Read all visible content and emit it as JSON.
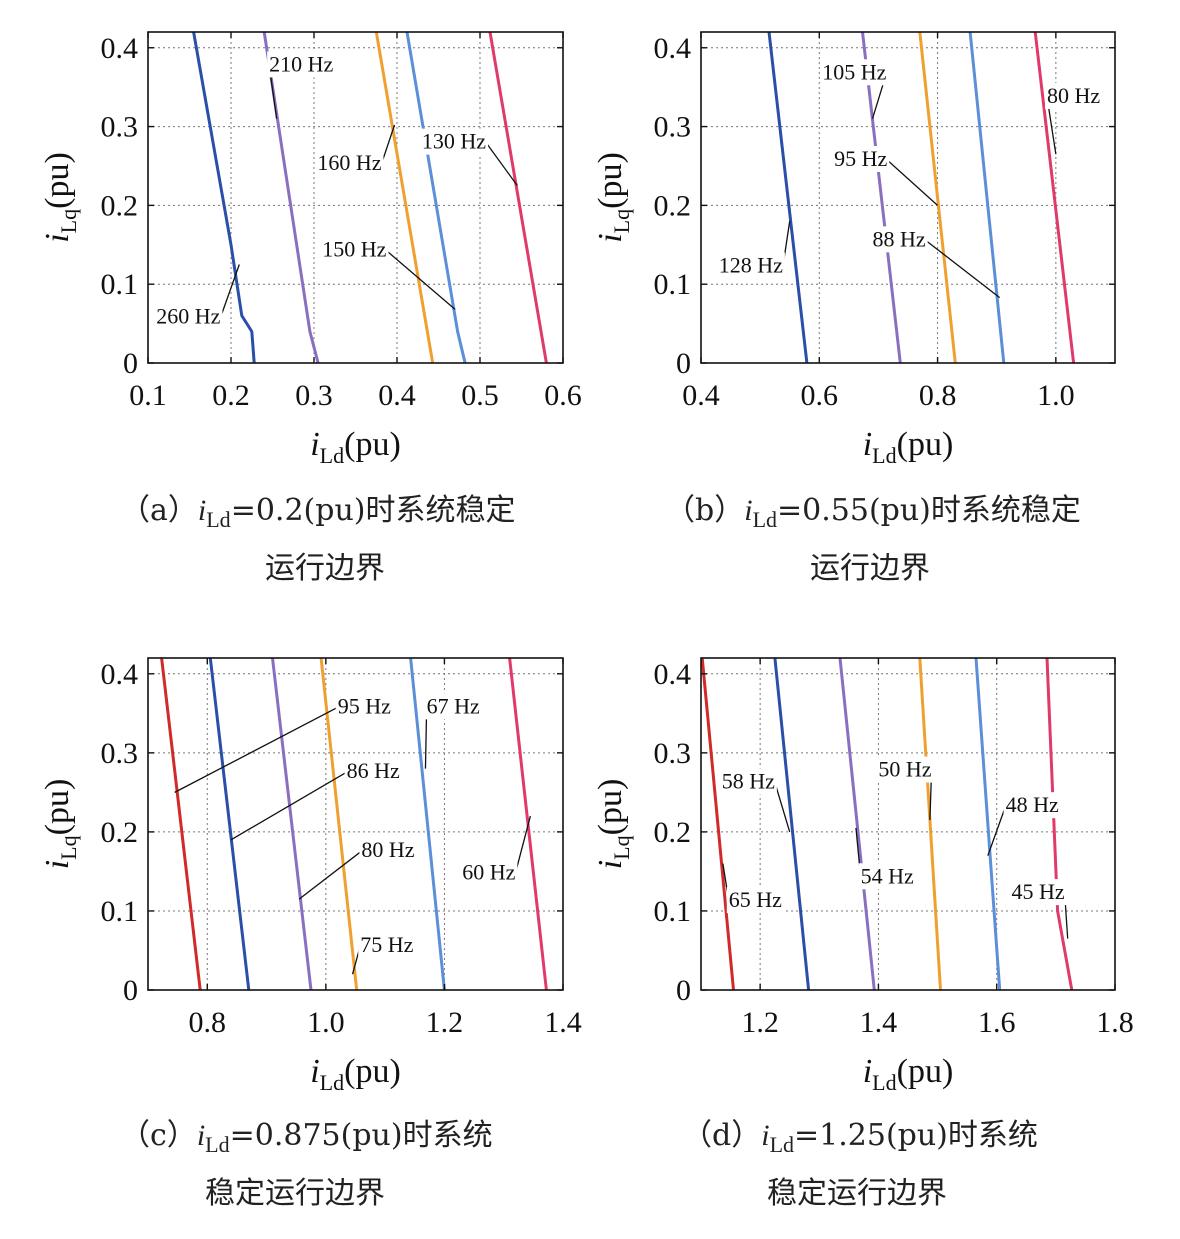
{
  "chart_data": [
    {
      "type": "line",
      "id": "a",
      "xlabel": {
        "var": "i",
        "sub": "Ld",
        "unit": "(pu)"
      },
      "ylabel": {
        "var": "i",
        "sub": "Lq",
        "unit": "(pu)"
      },
      "xlim": [
        0.1,
        0.6
      ],
      "ylim": [
        0,
        0.42
      ],
      "xticks": [
        0.1,
        0.2,
        0.3,
        0.4,
        0.5,
        0.6
      ],
      "xtick_labels": [
        "0.1",
        "0.2",
        "0.3",
        "0.4",
        "0.5",
        "0.6"
      ],
      "yticks": [
        0,
        0.1,
        0.2,
        0.3,
        0.4
      ],
      "ytick_labels": [
        "0",
        "0.1",
        "0.2",
        "0.3",
        "0.4"
      ],
      "caption": {
        "prefix": "（a）",
        "var": "i",
        "sub": "Ld",
        "text1": "=0.2(pu)时系统稳定",
        "line2": "运行边界"
      },
      "series": [
        {
          "name": "260 Hz",
          "color": "#2a4fa8",
          "x": [
            0.155,
            0.2,
            0.213,
            0.225,
            0.228
          ],
          "y": [
            0.42,
            0.15,
            0.06,
            0.04,
            0
          ]
        },
        {
          "name": "210 Hz",
          "color": "#8a6fc0",
          "x": [
            0.24,
            0.295,
            0.305
          ],
          "y": [
            0.42,
            0.04,
            0
          ]
        },
        {
          "name": "160 Hz",
          "color": "#f0a030",
          "x": [
            0.375,
            0.443
          ],
          "y": [
            0.42,
            0
          ]
        },
        {
          "name": "150 Hz",
          "color": "#5b8fd8",
          "x": [
            0.412,
            0.473,
            0.482
          ],
          "y": [
            0.42,
            0.04,
            0
          ]
        },
        {
          "name": "130 Hz",
          "color": "#e03a6a",
          "x": [
            0.512,
            0.58
          ],
          "y": [
            0.42,
            0
          ]
        }
      ],
      "labels": [
        {
          "text": "210 Hz",
          "tx": 0.246,
          "ty": 0.37,
          "ax": 0.255,
          "ay": 0.31
        },
        {
          "text": "160 Hz",
          "tx": 0.304,
          "ty": 0.245,
          "ax": 0.397,
          "ay": 0.302
        },
        {
          "text": "130 Hz",
          "tx": 0.43,
          "ty": 0.272,
          "ax": 0.545,
          "ay": 0.225
        },
        {
          "text": "150 Hz",
          "tx": 0.31,
          "ty": 0.135,
          "ax": 0.47,
          "ay": 0.068
        },
        {
          "text": "260 Hz",
          "tx": 0.11,
          "ty": 0.05,
          "ax": 0.21,
          "ay": 0.125
        }
      ]
    },
    {
      "type": "line",
      "id": "b",
      "xlabel": {
        "var": "i",
        "sub": "Ld",
        "unit": "(pu)"
      },
      "ylabel": {
        "var": "i",
        "sub": "Lq",
        "unit": "(pu)"
      },
      "xlim": [
        0.4,
        1.1
      ],
      "ylim": [
        0,
        0.42
      ],
      "xticks": [
        0.4,
        0.6,
        0.8,
        1.0
      ],
      "xtick_labels": [
        "0.4",
        "0.6",
        "0.8",
        "1.0"
      ],
      "yticks": [
        0,
        0.1,
        0.2,
        0.3,
        0.4
      ],
      "ytick_labels": [
        "0",
        "0.1",
        "0.2",
        "0.3",
        "0.4"
      ],
      "caption": {
        "prefix": "（b）",
        "var": "i",
        "sub": "Ld",
        "text1": "=0.55(pu)时系统稳定",
        "line2": "运行边界"
      },
      "series": [
        {
          "name": "128 Hz",
          "color": "#2a4fa8",
          "x": [
            0.515,
            0.579
          ],
          "y": [
            0.42,
            0
          ]
        },
        {
          "name": "105 Hz",
          "color": "#8a6fc0",
          "x": [
            0.673,
            0.737
          ],
          "y": [
            0.42,
            0
          ]
        },
        {
          "name": "95 Hz",
          "color": "#f0a030",
          "x": [
            0.77,
            0.83
          ],
          "y": [
            0.42,
            0
          ]
        },
        {
          "name": "88 Hz",
          "color": "#5b8fd8",
          "x": [
            0.855,
            0.912
          ],
          "y": [
            0.42,
            0
          ]
        },
        {
          "name": "80 Hz",
          "color": "#e03a6a",
          "x": [
            0.965,
            1.03
          ],
          "y": [
            0.42,
            0
          ]
        }
      ],
      "labels": [
        {
          "text": "105 Hz",
          "tx": 0.605,
          "ty": 0.36,
          "ax": 0.69,
          "ay": 0.31
        },
        {
          "text": "95 Hz",
          "tx": 0.625,
          "ty": 0.25,
          "ax": 0.8,
          "ay": 0.2
        },
        {
          "text": "88 Hz",
          "tx": 0.69,
          "ty": 0.148,
          "ax": 0.905,
          "ay": 0.083
        },
        {
          "text": "128 Hz",
          "tx": 0.43,
          "ty": 0.115,
          "ax": 0.55,
          "ay": 0.18
        },
        {
          "text": "80 Hz",
          "tx": 0.985,
          "ty": 0.33,
          "ax": 1.0,
          "ay": 0.265
        }
      ]
    },
    {
      "type": "line",
      "id": "c",
      "xlabel": {
        "var": "i",
        "sub": "Ld",
        "unit": "(pu)"
      },
      "ylabel": {
        "var": "i",
        "sub": "Lq",
        "unit": "(pu)"
      },
      "xlim": [
        0.7,
        1.4
      ],
      "ylim": [
        0,
        0.42
      ],
      "xticks": [
        0.8,
        1.0,
        1.2,
        1.4
      ],
      "xtick_labels": [
        "0.8",
        "1.0",
        "1.2",
        "1.4"
      ],
      "yticks": [
        0,
        0.1,
        0.2,
        0.3,
        0.4
      ],
      "ytick_labels": [
        "0",
        "0.1",
        "0.2",
        "0.3",
        "0.4"
      ],
      "caption": {
        "prefix": "（c）",
        "var": "i",
        "sub": "Ld",
        "text1": "=0.875(pu)时系统",
        "line2": "稳定运行边界"
      },
      "series": [
        {
          "name": "95 Hz",
          "color": "#d02a2a",
          "x": [
            0.723,
            0.788
          ],
          "y": [
            0.42,
            0
          ]
        },
        {
          "name": "86 Hz",
          "color": "#2a4fa8",
          "x": [
            0.805,
            0.87
          ],
          "y": [
            0.42,
            0
          ]
        },
        {
          "name": "80 Hz",
          "color": "#8a6fc0",
          "x": [
            0.91,
            0.975
          ],
          "y": [
            0.42,
            0
          ]
        },
        {
          "name": "75 Hz",
          "color": "#f0a030",
          "x": [
            0.992,
            1.052
          ],
          "y": [
            0.42,
            0
          ]
        },
        {
          "name": "67 Hz",
          "color": "#5b8fd8",
          "x": [
            1.143,
            1.2
          ],
          "y": [
            0.42,
            0
          ]
        },
        {
          "name": "60 Hz",
          "color": "#e03a6a",
          "x": [
            1.31,
            1.372
          ],
          "y": [
            0.42,
            0
          ]
        }
      ],
      "labels": [
        {
          "text": "95 Hz",
          "tx": 1.02,
          "ty": 0.35,
          "ax": 0.745,
          "ay": 0.25
        },
        {
          "text": "86 Hz",
          "tx": 1.035,
          "ty": 0.268,
          "ax": 0.84,
          "ay": 0.19
        },
        {
          "text": "80 Hz",
          "tx": 1.06,
          "ty": 0.168,
          "ax": 0.955,
          "ay": 0.115
        },
        {
          "text": "75 Hz",
          "tx": 1.058,
          "ty": 0.048,
          "ax": 1.045,
          "ay": 0.02
        },
        {
          "text": "67 Hz",
          "tx": 1.17,
          "ty": 0.35,
          "ax": 1.168,
          "ay": 0.28
        },
        {
          "text": "60 Hz",
          "tx": 1.23,
          "ty": 0.14,
          "ax": 1.345,
          "ay": 0.22
        }
      ]
    },
    {
      "type": "line",
      "id": "d",
      "xlabel": {
        "var": "i",
        "sub": "Ld",
        "unit": "(pu)"
      },
      "ylabel": {
        "var": "i",
        "sub": "Lq",
        "unit": "(pu)"
      },
      "xlim": [
        1.1,
        1.8
      ],
      "ylim": [
        0,
        0.42
      ],
      "xticks": [
        1.2,
        1.4,
        1.6,
        1.8
      ],
      "xtick_labels": [
        "1.2",
        "1.4",
        "1.6",
        "1.8"
      ],
      "yticks": [
        0,
        0.1,
        0.2,
        0.3,
        0.4
      ],
      "ytick_labels": [
        "0",
        "0.1",
        "0.2",
        "0.3",
        "0.4"
      ],
      "caption": {
        "prefix": "（d）",
        "var": "i",
        "sub": "Ld",
        "text1": "=1.25(pu)时系统",
        "line2": "稳定运行边界"
      },
      "series": [
        {
          "name": "65 Hz",
          "color": "#d02a2a",
          "x": [
            1.102,
            1.155
          ],
          "y": [
            0.42,
            0
          ]
        },
        {
          "name": "58 Hz",
          "color": "#2a4fa8",
          "x": [
            1.225,
            1.282
          ],
          "y": [
            0.42,
            0
          ]
        },
        {
          "name": "54 Hz",
          "color": "#8a6fc0",
          "x": [
            1.335,
            1.393
          ],
          "y": [
            0.42,
            0
          ]
        },
        {
          "name": "50 Hz",
          "color": "#f0a030",
          "x": [
            1.47,
            1.505
          ],
          "y": [
            0.42,
            0
          ]
        },
        {
          "name": "48 Hz",
          "color": "#5b8fd8",
          "x": [
            1.565,
            1.605
          ],
          "y": [
            0.42,
            0
          ]
        },
        {
          "name": "45 Hz",
          "color": "#e03a6a",
          "x": [
            1.685,
            1.703,
            1.727
          ],
          "y": [
            0.42,
            0.1,
            0
          ]
        }
      ],
      "labels": [
        {
          "text": "58 Hz",
          "tx": 1.135,
          "ty": 0.255,
          "ax": 1.25,
          "ay": 0.2
        },
        {
          "text": "65 Hz",
          "tx": 1.147,
          "ty": 0.105,
          "ax": 1.137,
          "ay": 0.16
        },
        {
          "text": "50 Hz",
          "tx": 1.4,
          "ty": 0.27,
          "ax": 1.487,
          "ay": 0.215
        },
        {
          "text": "54 Hz",
          "tx": 1.37,
          "ty": 0.135,
          "ax": 1.362,
          "ay": 0.205
        },
        {
          "text": "48 Hz",
          "tx": 1.615,
          "ty": 0.225,
          "ax": 1.585,
          "ay": 0.17
        },
        {
          "text": "45 Hz",
          "tx": 1.625,
          "ty": 0.115,
          "ax": 1.72,
          "ay": 0.065
        }
      ]
    }
  ]
}
